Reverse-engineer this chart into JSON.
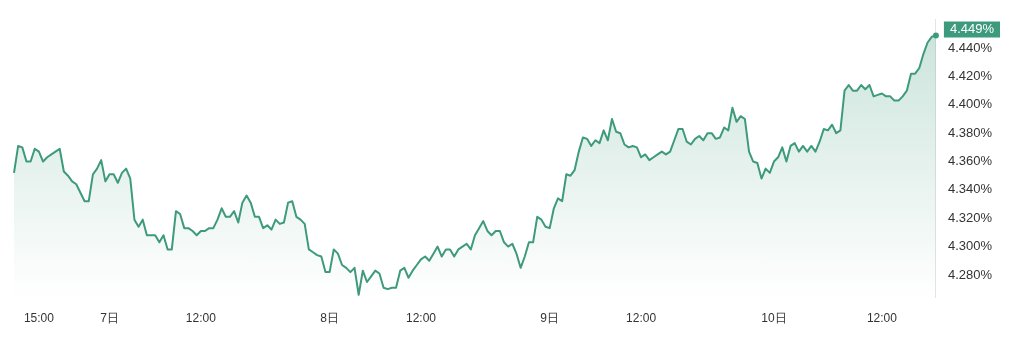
{
  "chart_data": {
    "type": "area",
    "categories": [
      null,
      null,
      null,
      null,
      null,
      null,
      "15:00",
      null,
      null,
      null,
      null,
      null,
      null,
      null,
      null,
      null,
      null,
      null,
      null,
      null,
      null,
      null,
      null,
      "7日",
      null,
      null,
      null,
      null,
      null,
      null,
      null,
      null,
      null,
      null,
      null,
      null,
      null,
      null,
      null,
      null,
      null,
      null,
      null,
      null,
      null,
      "12:00",
      null,
      null,
      null,
      null,
      null,
      null,
      null,
      null,
      null,
      null,
      null,
      null,
      null,
      null,
      null,
      null,
      null,
      null,
      null,
      null,
      null,
      null,
      null,
      null,
      null,
      null,
      null,
      null,
      null,
      null,
      "8日",
      null,
      null,
      null,
      null,
      null,
      null,
      null,
      null,
      null,
      null,
      null,
      null,
      null,
      null,
      null,
      null,
      null,
      null,
      null,
      null,
      null,
      "12:00",
      null,
      null,
      null,
      null,
      null,
      null,
      null,
      null,
      null,
      null,
      null,
      null,
      null,
      null,
      null,
      null,
      null,
      null,
      null,
      null,
      null,
      null,
      null,
      null,
      null,
      null,
      null,
      null,
      null,
      null,
      "9日",
      null,
      null,
      null,
      null,
      null,
      null,
      null,
      null,
      null,
      null,
      null,
      null,
      null,
      null,
      null,
      null,
      null,
      null,
      null,
      null,
      null,
      "12:00",
      null,
      null,
      null,
      null,
      null,
      null,
      null,
      null,
      null,
      null,
      null,
      null,
      null,
      null,
      null,
      null,
      null,
      null,
      null,
      null,
      null,
      null,
      null,
      null,
      null,
      null,
      null,
      null,
      null,
      null,
      null,
      "10日",
      null,
      null,
      null,
      null,
      null,
      null,
      null,
      null,
      null,
      null,
      null,
      null,
      null,
      null,
      null,
      null,
      null,
      null,
      null,
      null,
      null,
      null,
      null,
      null,
      null,
      "12:00",
      null,
      null,
      null,
      null,
      null,
      null,
      null,
      null,
      null,
      null,
      null,
      null,
      null
    ],
    "series": [
      {
        "color": "#3e9a7c",
        "values": [
          4.352,
          4.371,
          4.37,
          4.36,
          4.36,
          4.369,
          4.367,
          4.36,
          4.363,
          4.365,
          4.367,
          4.369,
          4.353,
          4.35,
          4.346,
          4.344,
          4.338,
          4.332,
          4.332,
          4.351,
          4.355,
          4.361,
          4.346,
          4.351,
          4.351,
          4.345,
          4.352,
          4.355,
          4.348,
          4.319,
          4.314,
          4.319,
          4.308,
          4.308,
          4.308,
          4.303,
          4.308,
          4.298,
          4.298,
          4.325,
          4.323,
          4.313,
          4.313,
          4.311,
          4.308,
          4.311,
          4.311,
          4.313,
          4.313,
          4.319,
          4.327,
          4.321,
          4.321,
          4.325,
          4.317,
          4.331,
          4.336,
          4.331,
          4.321,
          4.321,
          4.313,
          4.315,
          4.312,
          4.319,
          4.316,
          4.317,
          4.331,
          4.332,
          4.321,
          4.319,
          4.316,
          4.298,
          4.296,
          4.294,
          4.293,
          4.282,
          4.282,
          4.298,
          4.295,
          4.287,
          4.285,
          4.282,
          4.285,
          4.266,
          4.283,
          4.275,
          4.279,
          4.283,
          4.281,
          4.271,
          4.27,
          4.271,
          4.271,
          4.283,
          4.285,
          4.278,
          4.283,
          4.287,
          4.291,
          4.293,
          4.29,
          4.295,
          4.3,
          4.293,
          4.298,
          4.298,
          4.293,
          4.298,
          4.3,
          4.302,
          4.298,
          4.308,
          4.313,
          4.318,
          4.311,
          4.308,
          4.311,
          4.311,
          4.303,
          4.3,
          4.302,
          4.295,
          4.285,
          4.293,
          4.303,
          4.303,
          4.321,
          4.319,
          4.314,
          4.313,
          4.327,
          4.334,
          4.332,
          4.351,
          4.35,
          4.354,
          4.367,
          4.377,
          4.376,
          4.371,
          4.375,
          4.373,
          4.382,
          4.375,
          4.39,
          4.381,
          4.38,
          4.372,
          4.37,
          4.371,
          4.37,
          4.363,
          4.365,
          4.361,
          4.363,
          4.365,
          4.367,
          4.365,
          4.367,
          4.375,
          4.383,
          4.383,
          4.374,
          4.372,
          4.376,
          4.378,
          4.375,
          4.38,
          4.38,
          4.376,
          4.377,
          4.384,
          4.382,
          4.398,
          4.388,
          4.392,
          4.39,
          4.367,
          4.36,
          4.359,
          4.348,
          4.355,
          4.352,
          4.36,
          4.363,
          4.37,
          4.36,
          4.371,
          4.373,
          4.367,
          4.371,
          4.367,
          4.371,
          4.367,
          4.374,
          4.383,
          4.382,
          4.386,
          4.38,
          4.382,
          4.41,
          4.414,
          4.41,
          4.41,
          4.414,
          4.411,
          4.414,
          4.406,
          4.407,
          4.408,
          4.406,
          4.406,
          4.403,
          4.403,
          4.406,
          4.41,
          4.422,
          4.422,
          4.426,
          4.436,
          4.444,
          4.448,
          4.449
        ]
      }
    ],
    "ylim": [
      4.264,
      4.46
    ],
    "yticks": [
      {
        "value": 4.28,
        "label": "4.280%"
      },
      {
        "value": 4.3,
        "label": "4.300%"
      },
      {
        "value": 4.32,
        "label": "4.320%"
      },
      {
        "value": 4.34,
        "label": "4.340%"
      },
      {
        "value": 4.36,
        "label": "4.360%"
      },
      {
        "value": 4.38,
        "label": "4.380%"
      },
      {
        "value": 4.4,
        "label": "4.400%"
      },
      {
        "value": 4.42,
        "label": "4.420%"
      },
      {
        "value": 4.44,
        "label": "4.440%"
      }
    ],
    "annotations": [
      "4.449%"
    ]
  }
}
